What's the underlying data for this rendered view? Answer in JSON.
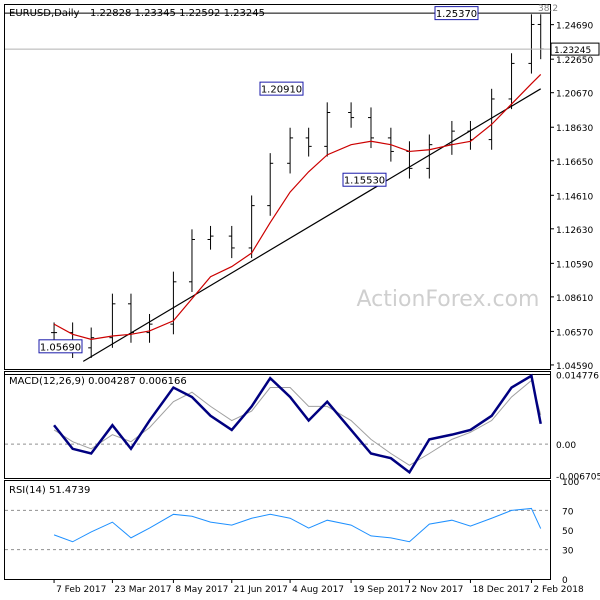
{
  "chart_data": {
    "type": "candlestick",
    "symbol_label": "EURUSD,Daily",
    "ohlc_label": "1.22828 1.23345 1.22592 1.23245",
    "watermark": "ActionForex.com",
    "price_axis": {
      "ylim": [
        1.0435,
        1.2585
      ],
      "tick_labels": [
        "1.24690",
        "1.22650",
        "1.20670",
        "1.18630",
        "1.16650",
        "1.14610",
        "1.12630",
        "1.10590",
        "1.08610",
        "1.06570",
        "1.04590"
      ],
      "last_price_label": "1.23245"
    },
    "x_axis": {
      "tick_labels": [
        "7 Feb 2017",
        "23 Mar 2017",
        "8 May 2017",
        "21 Jun 2017",
        "4 Aug 2017",
        "19 Sep 2017",
        "2 Nov 2017",
        "18 Dec 2017",
        "2 Feb 2018"
      ]
    },
    "annotations": [
      {
        "label": "1.25370",
        "price": 1.2537
      },
      {
        "label": "1.20910",
        "price": 1.2091
      },
      {
        "label": "1.15530",
        "price": 1.1553
      },
      {
        "label": "1.05690",
        "price": 1.0569
      },
      {
        "label": "38.2",
        "price": 1.2537
      }
    ],
    "trendline": {
      "from": {
        "date": "2017-03-01",
        "price": 1.048
      },
      "to": {
        "date": "2018-02-09",
        "price": 1.209
      }
    },
    "fib_line": {
      "from": {
        "date": "2017-01-01",
        "price": 1.2537
      },
      "to": {
        "date": "2018-02-16",
        "price": 1.2537
      }
    },
    "series": [
      {
        "name": "EURUSD",
        "color": "#000000",
        "dates": [
          "2017-02-07",
          "2017-02-21",
          "2017-03-07",
          "2017-03-23",
          "2017-04-06",
          "2017-04-20",
          "2017-05-08",
          "2017-05-22",
          "2017-06-05",
          "2017-06-21",
          "2017-07-06",
          "2017-07-20",
          "2017-08-04",
          "2017-08-18",
          "2017-09-01",
          "2017-09-19",
          "2017-10-04",
          "2017-10-19",
          "2017-11-02",
          "2017-11-17",
          "2017-12-04",
          "2017-12-18",
          "2018-01-03",
          "2018-01-18",
          "2018-02-02",
          "2018-02-09"
        ],
        "close": [
          1.065,
          1.056,
          1.062,
          1.082,
          1.065,
          1.07,
          1.095,
          1.12,
          1.122,
          1.115,
          1.14,
          1.165,
          1.18,
          1.175,
          1.195,
          1.192,
          1.18,
          1.172,
          1.162,
          1.176,
          1.184,
          1.179,
          1.203,
          1.224,
          1.247,
          1.2325
        ]
      },
      {
        "name": "MA",
        "color": "#cc0000",
        "values": [
          1.07,
          1.064,
          1.061,
          1.063,
          1.064,
          1.066,
          1.072,
          1.085,
          1.098,
          1.104,
          1.112,
          1.13,
          1.148,
          1.16,
          1.17,
          1.176,
          1.178,
          1.176,
          1.172,
          1.173,
          1.176,
          1.178,
          1.188,
          1.2,
          1.212,
          1.2175
        ]
      }
    ],
    "macd": {
      "label": "MACD(12,26,9) 0.004287 0.006166",
      "ylim": [
        -0.0072,
        0.0153
      ],
      "tick_labels": [
        "0.014776",
        "0.00",
        "-0.006705"
      ],
      "ref_levels": [
        0.014776,
        0
      ],
      "main": [
        0.004,
        -0.001,
        -0.002,
        0.004,
        -0.001,
        0.005,
        0.012,
        0.01,
        0.006,
        0.003,
        0.008,
        0.014,
        0.01,
        0.005,
        0.009,
        0.003,
        -0.002,
        -0.003,
        -0.006,
        0.001,
        0.002,
        0.003,
        0.006,
        0.012,
        0.0145,
        0.0043
      ],
      "signal": [
        0.003,
        0.0005,
        -0.001,
        0.002,
        0.0005,
        0.0035,
        0.009,
        0.011,
        0.008,
        0.005,
        0.007,
        0.012,
        0.012,
        0.008,
        0.008,
        0.005,
        0.001,
        -0.002,
        -0.0045,
        -0.002,
        0.001,
        0.0025,
        0.005,
        0.01,
        0.0135,
        0.0062
      ]
    },
    "rsi": {
      "label": "RSI(14) 51.4739",
      "ylim": [
        0,
        100
      ],
      "tick_labels": [
        "100",
        "70",
        "50",
        "30",
        "0"
      ],
      "ref_levels": [
        70,
        30
      ],
      "values": [
        45,
        38,
        48,
        58,
        42,
        52,
        66,
        64,
        58,
        55,
        62,
        66,
        62,
        52,
        60,
        55,
        44,
        42,
        38,
        56,
        60,
        54,
        62,
        70,
        72,
        51.47
      ]
    }
  }
}
